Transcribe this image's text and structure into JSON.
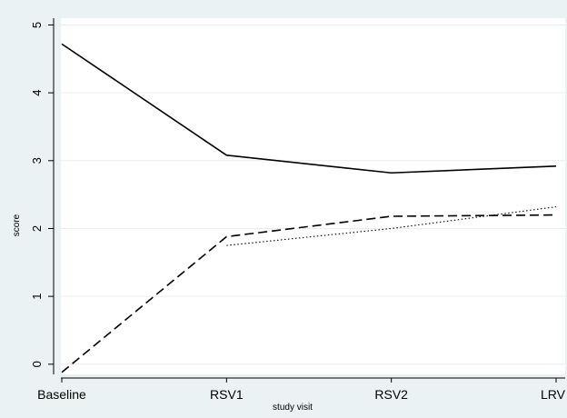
{
  "chart_data": {
    "type": "line",
    "categories": [
      "Baseline",
      "RSV1",
      "RSV2",
      "LRV"
    ],
    "xlabel": "study visit",
    "ylabel": "score",
    "ylim": [
      -0.15,
      5.1
    ],
    "yticks": [
      "0",
      "1",
      "2",
      "3",
      "4",
      "5"
    ],
    "grid": "horizontal",
    "legend": "none",
    "series": [
      {
        "style": "solid",
        "values": [
          4.72,
          3.08,
          2.82,
          2.92
        ]
      },
      {
        "style": "dashed",
        "values": [
          -0.12,
          1.88,
          2.18,
          2.2
        ]
      },
      {
        "style": "dotted",
        "values": [
          null,
          1.75,
          2.0,
          2.32
        ]
      }
    ],
    "colors": {
      "background": "#eaf2f3",
      "plot": "#ffffff",
      "line": "#000000",
      "grid": "#e8eef0"
    }
  }
}
